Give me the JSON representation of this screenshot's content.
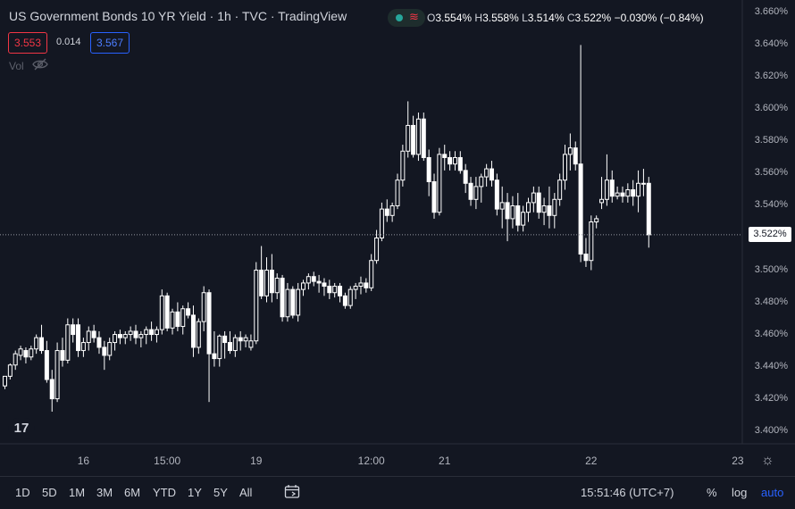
{
  "header": {
    "title": "US Government Bonds 10 YR Yield · 1h · TVC · TradingView",
    "ohlc": {
      "o_label": "O",
      "o": "3.554%",
      "h_label": "H",
      "h": "3.558%",
      "l_label": "L",
      "l": "3.514%",
      "c_label": "C",
      "c": "3.522%",
      "change": "−0.030% (−0.84%)"
    }
  },
  "trade": {
    "sell": "3.553",
    "spread": "0.014",
    "buy": "3.567"
  },
  "indicators": {
    "volume_label": "Vol"
  },
  "icons": {
    "status_wave": "≋",
    "tv_logo": "17",
    "settings": "☼",
    "eye_off": "eye-off-icon",
    "calendar": "calendar-range-icon"
  },
  "colors": {
    "background": "#131722",
    "candle": "#ffffff",
    "sell": "#f23645",
    "buy": "#2962ff",
    "accent": "#2962ff",
    "status": "#26a69a"
  },
  "bottom_bar": {
    "ranges": [
      "1D",
      "5D",
      "1M",
      "3M",
      "6M",
      "YTD",
      "1Y",
      "5Y",
      "All"
    ],
    "clock": "15:51:46 (UTC+7)",
    "percent": "%",
    "log": "log",
    "auto": "auto"
  },
  "chart_data": {
    "type": "candlestick",
    "title": "US Government Bonds 10 YR Yield",
    "interval": "1h",
    "last_price": "3.522%",
    "ylim": [
      3.392,
      3.668
    ],
    "y_ticks": [
      "3.660%",
      "3.640%",
      "3.620%",
      "3.600%",
      "3.580%",
      "3.560%",
      "3.540%",
      "3.520%",
      "3.500%",
      "3.480%",
      "3.460%",
      "3.440%",
      "3.420%",
      "3.400%"
    ],
    "y_tick_values": [
      3.66,
      3.64,
      3.62,
      3.6,
      3.58,
      3.56,
      3.54,
      3.52,
      3.5,
      3.48,
      3.46,
      3.44,
      3.42,
      3.4
    ],
    "x_ticks": [
      {
        "label": "16",
        "index": 15
      },
      {
        "label": "15:00",
        "index": 31
      },
      {
        "label": "19",
        "index": 48
      },
      {
        "label": "12:00",
        "index": 70
      },
      {
        "label": "21",
        "index": 84
      },
      {
        "label": "22",
        "index": 112
      },
      {
        "label": "23",
        "index": 140
      }
    ],
    "candles": [
      [
        3.428,
        3.434,
        3.426,
        3.434
      ],
      [
        3.434,
        3.442,
        3.432,
        3.441
      ],
      [
        3.441,
        3.45,
        3.438,
        3.448
      ],
      [
        3.447,
        3.453,
        3.444,
        3.451
      ],
      [
        3.45,
        3.452,
        3.442,
        3.446
      ],
      [
        3.446,
        3.453,
        3.444,
        3.451
      ],
      [
        3.451,
        3.46,
        3.448,
        3.458
      ],
      [
        3.458,
        3.466,
        3.448,
        3.45
      ],
      [
        3.45,
        3.456,
        3.43,
        3.432
      ],
      [
        3.432,
        3.438,
        3.412,
        3.42
      ],
      [
        3.42,
        3.455,
        3.418,
        3.45
      ],
      [
        3.45,
        3.458,
        3.44,
        3.444
      ],
      [
        3.444,
        3.47,
        3.442,
        3.466
      ],
      [
        3.466,
        3.47,
        3.455,
        3.46
      ],
      [
        3.466,
        3.47,
        3.446,
        3.45
      ],
      [
        3.45,
        3.458,
        3.446,
        3.455
      ],
      [
        3.455,
        3.465,
        3.45,
        3.462
      ],
      [
        3.462,
        3.466,
        3.455,
        3.458
      ],
      [
        3.458,
        3.462,
        3.448,
        3.452
      ],
      [
        3.452,
        3.456,
        3.438,
        3.447
      ],
      [
        3.447,
        3.458,
        3.444,
        3.455
      ],
      [
        3.455,
        3.462,
        3.45,
        3.46
      ],
      [
        3.46,
        3.463,
        3.454,
        3.458
      ],
      [
        3.458,
        3.462,
        3.454,
        3.46
      ],
      [
        3.46,
        3.465,
        3.456,
        3.462
      ],
      [
        3.462,
        3.466,
        3.454,
        3.458
      ],
      [
        3.458,
        3.462,
        3.452,
        3.46
      ],
      [
        3.46,
        3.465,
        3.454,
        3.463
      ],
      [
        3.463,
        3.468,
        3.456,
        3.46
      ],
      [
        3.46,
        3.465,
        3.455,
        3.463
      ],
      [
        3.463,
        3.488,
        3.46,
        3.484
      ],
      [
        3.484,
        3.486,
        3.462,
        3.464
      ],
      [
        3.464,
        3.476,
        3.46,
        3.474
      ],
      [
        3.474,
        3.48,
        3.462,
        3.465
      ],
      [
        3.465,
        3.478,
        3.46,
        3.476
      ],
      [
        3.476,
        3.48,
        3.47,
        3.472
      ],
      [
        3.472,
        3.478,
        3.446,
        3.452
      ],
      [
        3.452,
        3.47,
        3.448,
        3.468
      ],
      [
        3.468,
        3.49,
        3.462,
        3.486
      ],
      [
        3.486,
        3.488,
        3.418,
        3.448
      ],
      [
        3.448,
        3.462,
        3.44,
        3.445
      ],
      [
        3.445,
        3.46,
        3.44,
        3.459
      ],
      [
        3.459,
        3.462,
        3.445,
        3.455
      ],
      [
        3.455,
        3.462,
        3.448,
        3.45
      ],
      [
        3.45,
        3.46,
        3.446,
        3.458
      ],
      [
        3.458,
        3.462,
        3.45,
        3.456
      ],
      [
        3.456,
        3.46,
        3.452,
        3.458
      ],
      [
        3.452,
        3.46,
        3.45,
        3.456
      ],
      [
        3.456,
        3.505,
        3.454,
        3.5
      ],
      [
        3.5,
        3.515,
        3.482,
        3.484
      ],
      [
        3.484,
        3.508,
        3.48,
        3.5
      ],
      [
        3.5,
        3.51,
        3.48,
        3.486
      ],
      [
        3.486,
        3.498,
        3.482,
        3.495
      ],
      [
        3.495,
        3.497,
        3.468,
        3.471
      ],
      [
        3.471,
        3.492,
        3.468,
        3.488
      ],
      [
        3.488,
        3.49,
        3.47,
        3.472
      ],
      [
        3.472,
        3.492,
        3.468,
        3.488
      ],
      [
        3.488,
        3.494,
        3.484,
        3.492
      ],
      [
        3.492,
        3.498,
        3.488,
        3.496
      ],
      [
        3.496,
        3.499,
        3.49,
        3.493
      ],
      [
        3.493,
        3.497,
        3.486,
        3.492
      ],
      [
        3.492,
        3.495,
        3.484,
        3.49
      ],
      [
        3.49,
        3.494,
        3.482,
        3.486
      ],
      [
        3.486,
        3.492,
        3.483,
        3.49
      ],
      [
        3.49,
        3.492,
        3.48,
        3.484
      ],
      [
        3.484,
        3.486,
        3.476,
        3.478
      ],
      [
        3.478,
        3.49,
        3.476,
        3.488
      ],
      [
        3.488,
        3.492,
        3.482,
        3.49
      ],
      [
        3.49,
        3.496,
        3.485,
        3.492
      ],
      [
        3.492,
        3.495,
        3.486,
        3.489
      ],
      [
        3.489,
        3.51,
        3.487,
        3.506
      ],
      [
        3.506,
        3.525,
        3.504,
        3.52
      ],
      [
        3.52,
        3.542,
        3.518,
        3.538
      ],
      [
        3.538,
        3.544,
        3.53,
        3.534
      ],
      [
        3.534,
        3.542,
        3.53,
        3.54
      ],
      [
        3.54,
        3.56,
        3.538,
        3.556
      ],
      [
        3.556,
        3.578,
        3.552,
        3.574
      ],
      [
        3.574,
        3.605,
        3.57,
        3.59
      ],
      [
        3.59,
        3.596,
        3.57,
        3.572
      ],
      [
        3.572,
        3.598,
        3.568,
        3.594
      ],
      [
        3.594,
        3.598,
        3.568,
        3.57
      ],
      [
        3.57,
        3.575,
        3.546,
        3.555
      ],
      [
        3.555,
        3.56,
        3.532,
        3.536
      ],
      [
        3.536,
        3.576,
        3.534,
        3.572
      ],
      [
        3.572,
        3.578,
        3.562,
        3.57
      ],
      [
        3.57,
        3.574,
        3.562,
        3.566
      ],
      [
        3.566,
        3.574,
        3.562,
        3.57
      ],
      [
        3.57,
        3.574,
        3.56,
        3.562
      ],
      [
        3.562,
        3.566,
        3.548,
        3.554
      ],
      [
        3.554,
        3.558,
        3.54,
        3.544
      ],
      [
        3.544,
        3.558,
        3.538,
        3.552
      ],
      [
        3.552,
        3.56,
        3.542,
        3.558
      ],
      [
        3.558,
        3.566,
        3.552,
        3.563
      ],
      [
        3.563,
        3.568,
        3.552,
        3.556
      ],
      [
        3.556,
        3.56,
        3.534,
        3.538
      ],
      [
        3.538,
        3.552,
        3.526,
        3.542
      ],
      [
        3.542,
        3.548,
        3.518,
        3.532
      ],
      [
        3.532,
        3.546,
        3.526,
        3.54
      ],
      [
        3.54,
        3.548,
        3.524,
        3.528
      ],
      [
        3.528,
        3.54,
        3.524,
        3.536
      ],
      [
        3.536,
        3.545,
        3.53,
        3.542
      ],
      [
        3.542,
        3.552,
        3.536,
        3.548
      ],
      [
        3.548,
        3.552,
        3.532,
        3.536
      ],
      [
        3.536,
        3.545,
        3.528,
        3.54
      ],
      [
        3.54,
        3.552,
        3.526,
        3.534
      ],
      [
        3.534,
        3.548,
        3.526,
        3.544
      ],
      [
        3.544,
        3.56,
        3.54,
        3.556
      ],
      [
        3.556,
        3.578,
        3.55,
        3.572
      ],
      [
        3.572,
        3.585,
        3.562,
        3.576
      ],
      [
        3.576,
        3.58,
        3.562,
        3.566
      ],
      [
        3.566,
        3.64,
        3.505,
        3.51
      ],
      [
        3.51,
        3.52,
        3.502,
        3.506
      ],
      [
        3.506,
        3.534,
        3.5,
        3.53
      ],
      [
        3.53,
        3.534,
        3.526,
        3.532
      ],
      [
        3.542,
        3.558,
        3.538,
        3.544
      ],
      [
        3.544,
        3.572,
        3.54,
        3.556
      ],
      [
        3.556,
        3.562,
        3.542,
        3.546
      ],
      [
        3.546,
        3.552,
        3.544,
        3.548
      ],
      [
        3.548,
        3.552,
        3.542,
        3.546
      ],
      [
        3.546,
        3.554,
        3.542,
        3.55
      ],
      [
        3.55,
        3.556,
        3.54,
        3.546
      ],
      [
        3.546,
        3.562,
        3.536,
        3.554
      ],
      [
        3.554,
        3.563,
        3.546,
        3.554
      ],
      [
        3.554,
        3.558,
        3.514,
        3.522
      ]
    ]
  }
}
